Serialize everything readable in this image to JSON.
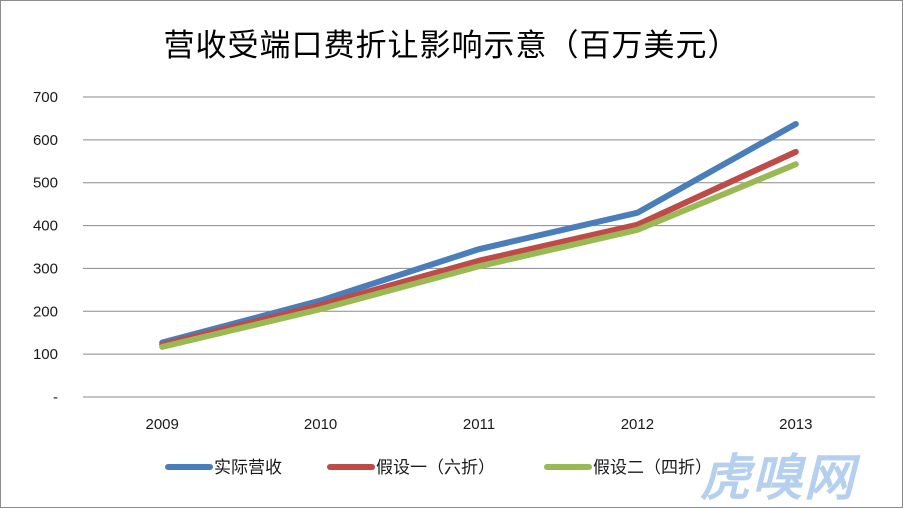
{
  "chart_data": {
    "type": "line",
    "title": "营收受端口费折让影响示意（百万美元）",
    "categories": [
      "2009",
      "2010",
      "2011",
      "2012",
      "2013"
    ],
    "y_tick_labels": [
      "-",
      "100",
      "200",
      "300",
      "400",
      "500",
      "600",
      "700"
    ],
    "ylim": [
      0,
      700
    ],
    "grid": true,
    "legend_position": "bottom",
    "series": [
      {
        "name": "实际营收",
        "color": "#4a7ebb",
        "values": [
          127,
          225,
          345,
          430,
          637
        ]
      },
      {
        "name": "假设一（六折）",
        "color": "#be4b48",
        "values": [
          122,
          215,
          318,
          402,
          572
        ]
      },
      {
        "name": "假设二（四折）",
        "color": "#98b954",
        "values": [
          117,
          205,
          305,
          390,
          543
        ]
      }
    ]
  },
  "watermark": "虎嗅网"
}
